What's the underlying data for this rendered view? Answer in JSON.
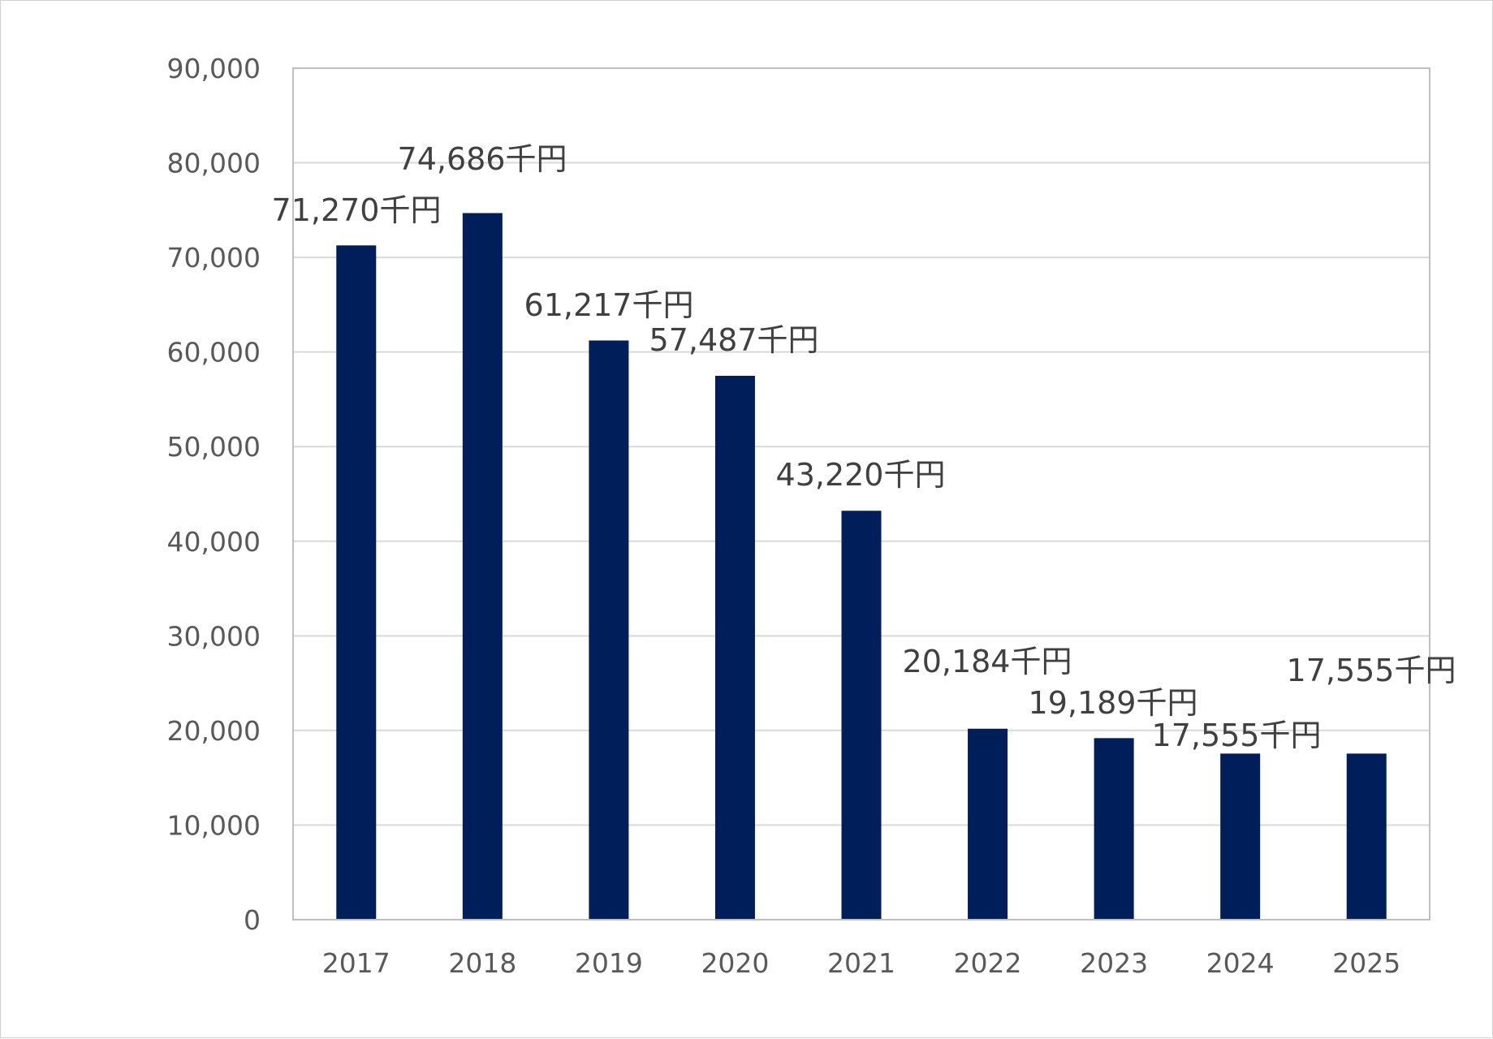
{
  "chart_data": {
    "type": "bar",
    "categories": [
      "2017",
      "2018",
      "2019",
      "2020",
      "2021",
      "2022",
      "2023",
      "2024",
      "2025"
    ],
    "values": [
      71270,
      74686,
      61217,
      57487,
      43220,
      20184,
      19189,
      17555,
      17555
    ],
    "data_labels": [
      "71,270千円",
      "74,686千円",
      "61,217千円",
      "57,487千円",
      "43,220千円",
      "20,184千円",
      "19,189千円",
      "17,555千円",
      "17,555千円"
    ],
    "title": "",
    "xlabel": "",
    "ylabel": "",
    "ylim": [
      0,
      90000
    ],
    "yticks": [
      0,
      10000,
      20000,
      30000,
      40000,
      50000,
      60000,
      70000,
      80000,
      90000
    ],
    "ytick_labels": [
      "0",
      "10,000",
      "20,000",
      "30,000",
      "40,000",
      "50,000",
      "60,000",
      "70,000",
      "80,000",
      "90,000"
    ],
    "grid": true,
    "legend": "none",
    "colors": {
      "bar": "#001E5A",
      "grid": "#D9D9D9",
      "axis": "#BFBFBF",
      "tick_text": "#595959",
      "label_text": "#404040"
    }
  }
}
